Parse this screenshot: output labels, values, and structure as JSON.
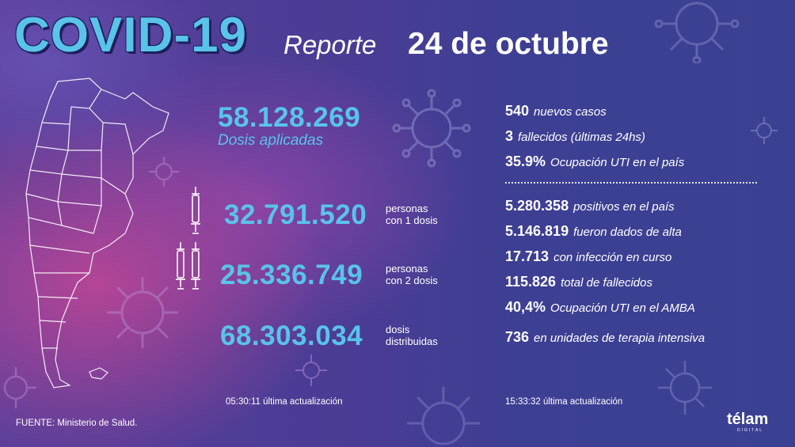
{
  "header": {
    "covid_title": "COVID-19",
    "reporte_label": "Reporte",
    "date": "24 de octubre"
  },
  "vaccination": {
    "total_value": "58.128.269",
    "total_label": "Dosis aplicadas",
    "one_dose_value": "32.791.520",
    "one_dose_label_line1": "personas",
    "one_dose_label_line2": "con 1 dosis",
    "two_dose_value": "25.336.749",
    "two_dose_label_line1": "personas",
    "two_dose_label_line2": "con 2 dosis",
    "distributed_value": "68.303.034",
    "distributed_label_line1": "dosis",
    "distributed_label_line2": "distribuidas",
    "update_time": "05:30:11",
    "update_label": "última actualización"
  },
  "daily": [
    {
      "value": "540",
      "label": "nuevos casos"
    },
    {
      "value": "3",
      "label": "fallecidos (últimas 24hs)"
    },
    {
      "value": "35.9%",
      "label": "Ocupación UTI en el país"
    }
  ],
  "totals": [
    {
      "value": "5.280.358",
      "label": "positivos en el país"
    },
    {
      "value": "5.146.819",
      "label": "fueron dados de alta"
    },
    {
      "value": "17.713",
      "label": "con infección en curso"
    },
    {
      "value": "115.826",
      "label": "total de fallecidos"
    },
    {
      "value": "40,4%",
      "label": "Ocupación UTI en el AMBA"
    },
    {
      "value": "736",
      "label": "en unidades de terapia intensiva"
    }
  ],
  "cases_update": {
    "time": "15:33:32",
    "label": "última actualización"
  },
  "footer": {
    "source": "FUENTE: Ministerio de Salud.",
    "logo": "télam",
    "logo_sub": "DIGITAL"
  },
  "colors": {
    "accent_blue": "#5ac3ea",
    "title_outline": "#1d1f5c",
    "background_purple": "#4a3c94",
    "background_pink": "#c64696"
  }
}
